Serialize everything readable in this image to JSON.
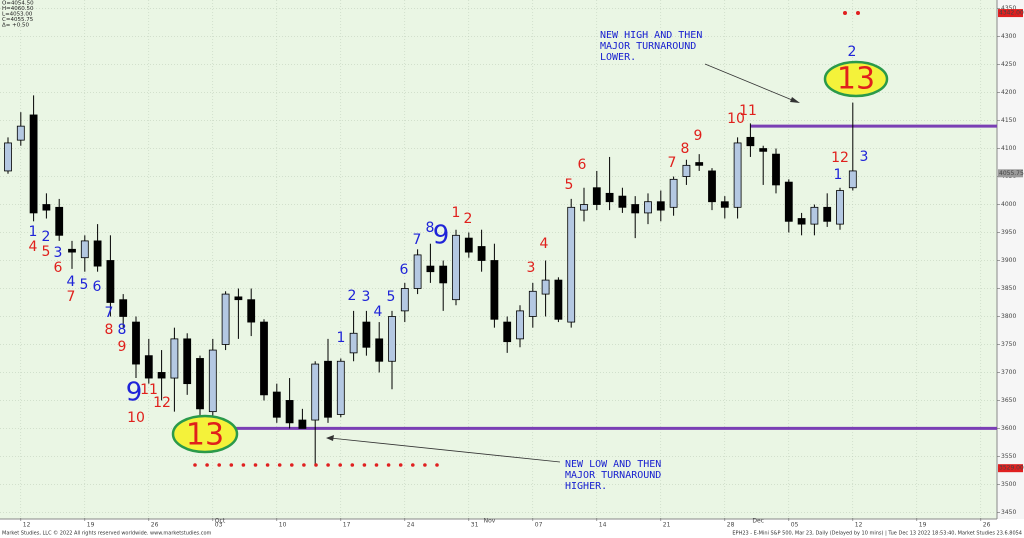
{
  "chart_data": {
    "type": "candlestick",
    "info": [
      "O=4054.50",
      "H=4060.50",
      "L=4053.00",
      "C=4055.75",
      "Δ= +0.50"
    ],
    "categories": [
      null,
      "12",
      null,
      null,
      null,
      null,
      "19",
      null,
      null,
      null,
      null,
      "26",
      null,
      null,
      null,
      null,
      "03",
      null,
      null,
      null,
      null,
      "10",
      null,
      null,
      null,
      null,
      "17",
      null,
      null,
      null,
      null,
      "24",
      null,
      null,
      null,
      null,
      "31",
      null,
      null,
      null,
      null,
      "07",
      null,
      null,
      null,
      null,
      "14",
      null,
      null,
      null,
      null,
      "21",
      null,
      null,
      null,
      null,
      "28",
      null,
      null,
      null,
      null,
      "05",
      null,
      null,
      null,
      null,
      "12",
      null,
      null,
      null,
      null,
      "19",
      null,
      null,
      null,
      null,
      "26",
      null,
      null
    ],
    "months": [
      null,
      null,
      null,
      null,
      null,
      null,
      null,
      null,
      null,
      null,
      null,
      null,
      null,
      null,
      null,
      null,
      "Oct",
      null,
      null,
      null,
      null,
      null,
      null,
      null,
      null,
      null,
      null,
      null,
      null,
      null,
      null,
      null,
      null,
      null,
      null,
      null,
      null,
      "Nov",
      null,
      null,
      null,
      null,
      null,
      null,
      null,
      null,
      null,
      null,
      null,
      null,
      null,
      null,
      null,
      null,
      null,
      null,
      null,
      null,
      "Dec",
      null,
      null,
      null,
      null,
      null,
      null,
      null,
      null,
      null,
      null,
      null,
      null,
      null,
      null,
      null,
      null,
      null,
      null,
      null
    ],
    "open": [
      4060,
      4115,
      4160,
      4000,
      3995,
      3920,
      3905,
      3935,
      3900,
      3830,
      3790,
      3730,
      3700,
      3690,
      3760,
      3725,
      3630,
      3750,
      3835,
      3830,
      3790,
      3665,
      3650,
      3615,
      3615,
      3720,
      3625,
      3735,
      3790,
      3760,
      3720,
      3810,
      3850,
      3890,
      3890,
      3830,
      3940,
      3925,
      3900,
      3790,
      3760,
      3800,
      3840,
      3865,
      3790,
      3990,
      4030,
      4020,
      4015,
      4000,
      3985,
      4005,
      3995,
      4050,
      4075,
      4060,
      4005,
      3995,
      4120,
      4100,
      4090,
      4040,
      3975,
      3965,
      3995,
      3965,
      4030,
      null,
      null,
      null,
      null,
      null,
      null,
      null,
      null,
      null,
      null,
      null
    ],
    "high": [
      4120,
      4165,
      4195,
      4020,
      4010,
      3935,
      3945,
      3965,
      3945,
      3840,
      3800,
      3760,
      3740,
      3780,
      3770,
      3730,
      3760,
      3845,
      3850,
      3850,
      3795,
      3680,
      3690,
      3635,
      3720,
      3760,
      3725,
      3810,
      3810,
      3790,
      3810,
      3860,
      3920,
      3930,
      3900,
      3955,
      3950,
      3955,
      3930,
      3800,
      3820,
      3860,
      3900,
      3870,
      4010,
      4030,
      4060,
      4085,
      4030,
      4015,
      4020,
      4025,
      4050,
      4080,
      4090,
      4065,
      4015,
      4120,
      4145,
      4105,
      4100,
      4045,
      3985,
      4000,
      4020,
      4030,
      4182,
      null,
      null,
      null,
      null,
      null,
      null,
      null,
      null,
      null,
      null,
      null
    ],
    "low": [
      4055,
      4105,
      3970,
      3975,
      3935,
      3885,
      3880,
      3880,
      3800,
      3780,
      3690,
      3680,
      3650,
      3630,
      3660,
      3615,
      3610,
      3740,
      3760,
      3765,
      3650,
      3610,
      3600,
      3600,
      3535,
      3610,
      3620,
      3720,
      3730,
      3700,
      3670,
      3790,
      3840,
      3860,
      3810,
      3820,
      3905,
      3880,
      3780,
      3735,
      3745,
      3780,
      3800,
      3790,
      3780,
      3970,
      3990,
      3990,
      3985,
      3940,
      3965,
      3970,
      3980,
      4035,
      4060,
      3990,
      3975,
      3975,
      4085,
      4035,
      4020,
      3950,
      3945,
      3945,
      3960,
      3955,
      4025,
      null,
      null,
      null,
      null,
      null,
      null,
      null,
      null,
      null,
      null,
      null
    ],
    "close": [
      4110,
      4140,
      3985,
      3990,
      3945,
      3915,
      3935,
      3890,
      3825,
      3800,
      3715,
      3690,
      3690,
      3760,
      3680,
      3635,
      3740,
      3840,
      3830,
      3790,
      3660,
      3620,
      3610,
      3600,
      3715,
      3620,
      3720,
      3770,
      3745,
      3720,
      3800,
      3850,
      3910,
      3880,
      3860,
      3945,
      3915,
      3900,
      3795,
      3755,
      3810,
      3845,
      3865,
      3795,
      3995,
      4000,
      4000,
      4005,
      3995,
      3985,
      4005,
      3990,
      4045,
      4070,
      4070,
      4005,
      3995,
      4110,
      4105,
      4095,
      4035,
      3970,
      3965,
      3995,
      3970,
      4025,
      4060,
      null,
      null,
      null,
      null,
      null,
      null,
      null,
      null,
      null,
      null,
      null
    ],
    "up_color": "#b4c8e2",
    "down_color": "#000000",
    "ylim": [
      3440,
      4360
    ],
    "yticks": [
      3450,
      3500,
      3550,
      3600,
      3650,
      3700,
      3750,
      3800,
      3850,
      3900,
      3950,
      4000,
      4050,
      4100,
      4150,
      4200,
      4250,
      4300,
      4350
    ],
    "grid": true,
    "levels": [
      {
        "value": 4140,
        "color": "#7a3fb4"
      },
      {
        "value": 3600,
        "color": "#7a3fb4"
      }
    ],
    "price_tags": [
      {
        "value": 4342,
        "label": "4342.00",
        "color": "#e02020"
      },
      {
        "value": 4055.75,
        "label": "4055.75",
        "color": "#9a9a9a"
      },
      {
        "value": 3529,
        "label": "3529.00",
        "color": "#e02020"
      }
    ],
    "sequence_labels": [
      {
        "text": "1",
        "color": "#1f24d8"
      },
      {
        "text": "4",
        "color": "#e0201c"
      },
      {
        "text": "2",
        "color": "#1f24d8"
      },
      {
        "text": "5",
        "color": "#e0201c"
      },
      {
        "text": "3",
        "color": "#1f24d8"
      },
      {
        "text": "6",
        "color": "#e0201c"
      },
      {
        "text": "4",
        "color": "#1f24d8"
      },
      {
        "text": "7",
        "color": "#e0201c"
      },
      {
        "text": "5",
        "color": "#1f24d8"
      },
      {
        "text": "6",
        "color": "#1f24d8"
      },
      {
        "text": "7",
        "color": "#1f24d8"
      },
      {
        "text": "8",
        "color": "#e0201c"
      },
      {
        "text": "8",
        "color": "#1f24d8"
      },
      {
        "text": "9",
        "color": "#e0201c"
      },
      {
        "text": "9",
        "color": "#1f24d8"
      },
      {
        "text": "11",
        "color": "#e0201c"
      },
      {
        "text": "12",
        "color": "#e0201c"
      },
      {
        "text": "10",
        "color": "#e0201c"
      },
      {
        "text": "13",
        "color": "#e0201c"
      },
      {
        "text": "1",
        "color": "#1f24d8"
      },
      {
        "text": "2",
        "color": "#1f24d8"
      },
      {
        "text": "3",
        "color": "#1f24d8"
      },
      {
        "text": "4",
        "color": "#1f24d8"
      },
      {
        "text": "5",
        "color": "#1f24d8"
      },
      {
        "text": "6",
        "color": "#1f24d8"
      },
      {
        "text": "7",
        "color": "#1f24d8"
      },
      {
        "text": "8",
        "color": "#1f24d8"
      },
      {
        "text": "9",
        "color": "#1f24d8"
      },
      {
        "text": "1",
        "color": "#e0201c"
      },
      {
        "text": "2",
        "color": "#e0201c"
      },
      {
        "text": "3",
        "color": "#e0201c"
      },
      {
        "text": "4",
        "color": "#e0201c"
      },
      {
        "text": "5",
        "color": "#e0201c"
      },
      {
        "text": "6",
        "color": "#e0201c"
      },
      {
        "text": "7",
        "color": "#e0201c"
      },
      {
        "text": "8",
        "color": "#e0201c"
      },
      {
        "text": "9",
        "color": "#e0201c"
      },
      {
        "text": "10",
        "color": "#e0201c"
      },
      {
        "text": "11",
        "color": "#e0201c"
      },
      {
        "text": "12",
        "color": "#e0201c"
      },
      {
        "text": "1",
        "color": "#1f24d8"
      },
      {
        "text": "3",
        "color": "#1f24d8"
      },
      {
        "text": "2",
        "color": "#1f24d8"
      },
      {
        "text": "13",
        "color": "#e0201c"
      }
    ],
    "annotations": [
      {
        "lines": [
          "NEW HIGH AND THEN",
          "MAJOR TURNAROUND",
          "LOWER."
        ]
      },
      {
        "lines": [
          "NEW LOW AND THEN",
          "MAJOR TURNAROUND",
          "HIGHER."
        ]
      }
    ],
    "footer": {
      "left": "Market Studies, LLC © 2022 All rights reserved worldwide. www.marketstudies.com",
      "right": "EPH23 - E-Mini S&P 500, Mar 23, Daily (Delayed by 10 mins) | Tue Dec 13 2022 18:53:40, Market Studies 23.6.8054"
    }
  }
}
